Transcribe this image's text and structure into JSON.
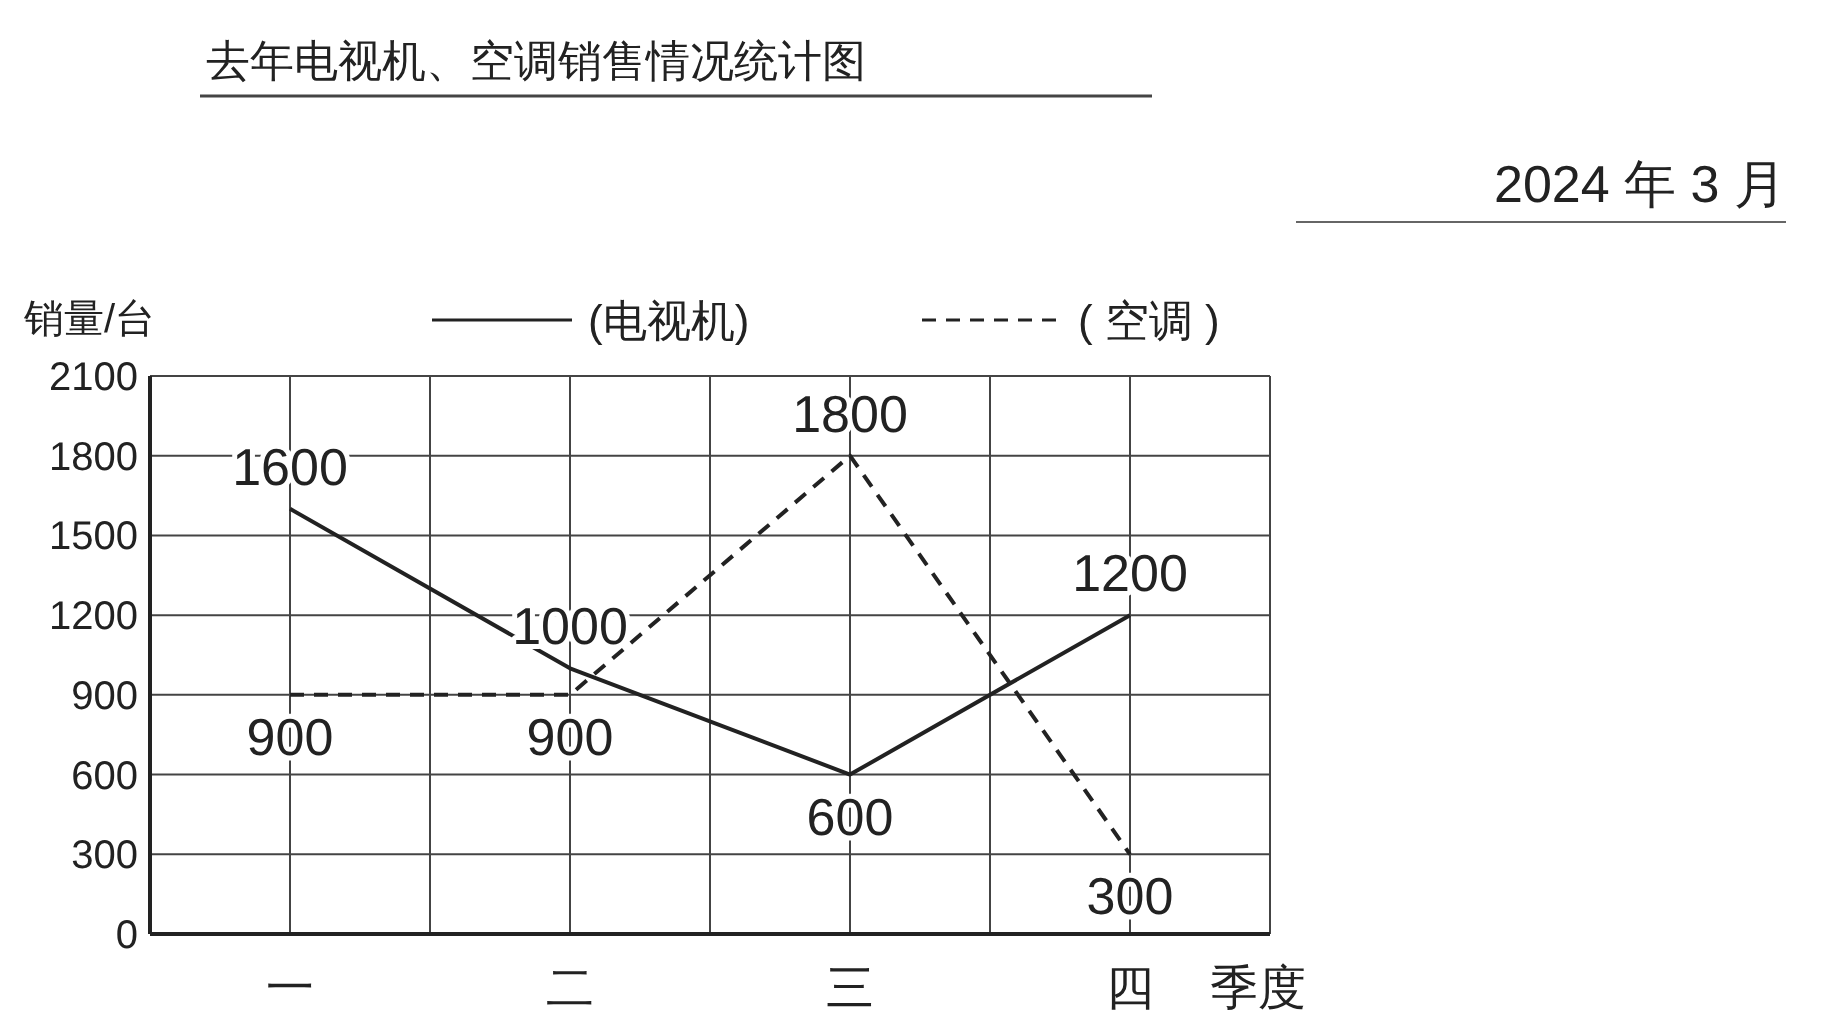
{
  "chart_data": {
    "type": "line",
    "title": "去年电视机、空调销售情况统计图",
    "annotations": [
      "2024 年 3 月"
    ],
    "ylabel": "销量/台",
    "xlabel": "季度",
    "categories": [
      "一",
      "二",
      "三",
      "四"
    ],
    "series": [
      {
        "name": "(电视机)",
        "color": "#222222",
        "line_style": "solid",
        "values": [
          1600,
          1000,
          600,
          1200
        ]
      },
      {
        "name": "( 空调 )",
        "color": "#222222",
        "line_style": "dashed",
        "values": [
          900,
          900,
          1800,
          300
        ]
      }
    ],
    "ylim": [
      0,
      2100
    ],
    "yticks": [
      0,
      300,
      600,
      900,
      1200,
      1500,
      1800,
      2100
    ],
    "grid": true,
    "legend": "top",
    "data_labels": true,
    "marker": "none"
  }
}
